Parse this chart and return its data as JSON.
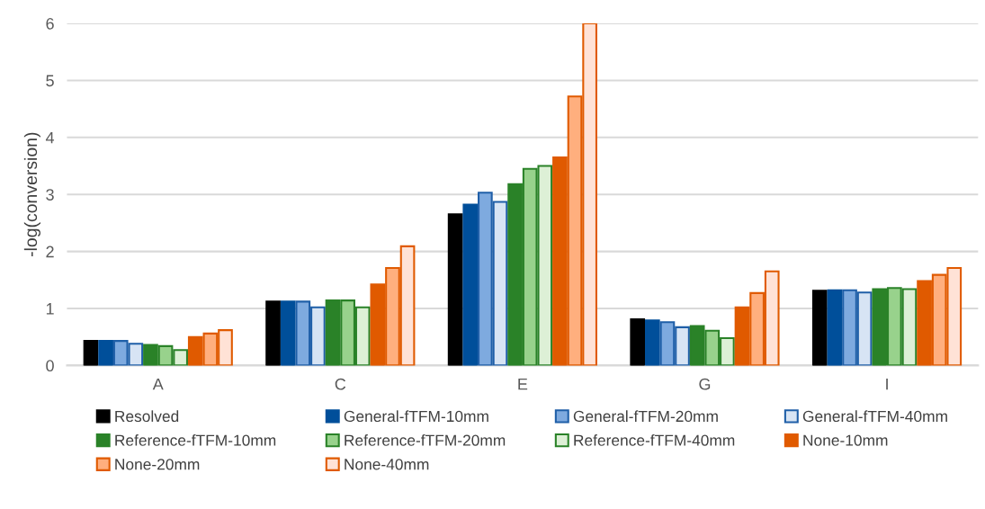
{
  "chart_data": {
    "type": "bar",
    "ylabel": "-log(conversion)",
    "categories": [
      "A",
      "C",
      "E",
      "G",
      "I"
    ],
    "ylim": [
      0,
      6
    ],
    "yticks": [
      0,
      1,
      2,
      3,
      4,
      5,
      6
    ],
    "grid": "y",
    "legend": "bottom",
    "series": [
      {
        "name": "Resolved",
        "color": "#000000",
        "values": [
          0.43,
          1.12,
          2.65,
          0.81,
          1.31
        ]
      },
      {
        "name": "General-fTFM-10mm",
        "color": "#004f9a",
        "values": [
          0.43,
          1.12,
          2.82,
          0.79,
          1.32
        ]
      },
      {
        "name": "General-fTFM-20mm",
        "color": "#7eaadf",
        "values": [
          0.43,
          1.12,
          3.03,
          0.76,
          1.32
        ]
      },
      {
        "name": "General-fTFM-40mm",
        "color": "#d7e4f4",
        "values": [
          0.38,
          1.02,
          2.87,
          0.67,
          1.28
        ]
      },
      {
        "name": "Reference-fTFM-10mm",
        "color": "#2a8228",
        "values": [
          0.36,
          1.14,
          3.18,
          0.69,
          1.34
        ]
      },
      {
        "name": "Reference-fTFM-20mm",
        "color": "#98d28c",
        "values": [
          0.34,
          1.14,
          3.45,
          0.61,
          1.36
        ]
      },
      {
        "name": "Reference-fTFM-40mm",
        "color": "#ddf0d6",
        "values": [
          0.27,
          1.02,
          3.5,
          0.48,
          1.34
        ]
      },
      {
        "name": "None-10mm",
        "color": "#e05a00",
        "values": [
          0.5,
          1.42,
          3.65,
          1.02,
          1.48
        ]
      },
      {
        "name": "None-20mm",
        "color": "#ffaf7e",
        "values": [
          0.56,
          1.71,
          4.72,
          1.27,
          1.59
        ]
      },
      {
        "name": "None-40mm",
        "color": "#ffe2d6",
        "values": [
          0.62,
          2.09,
          6,
          1.65,
          1.71
        ]
      }
    ]
  }
}
